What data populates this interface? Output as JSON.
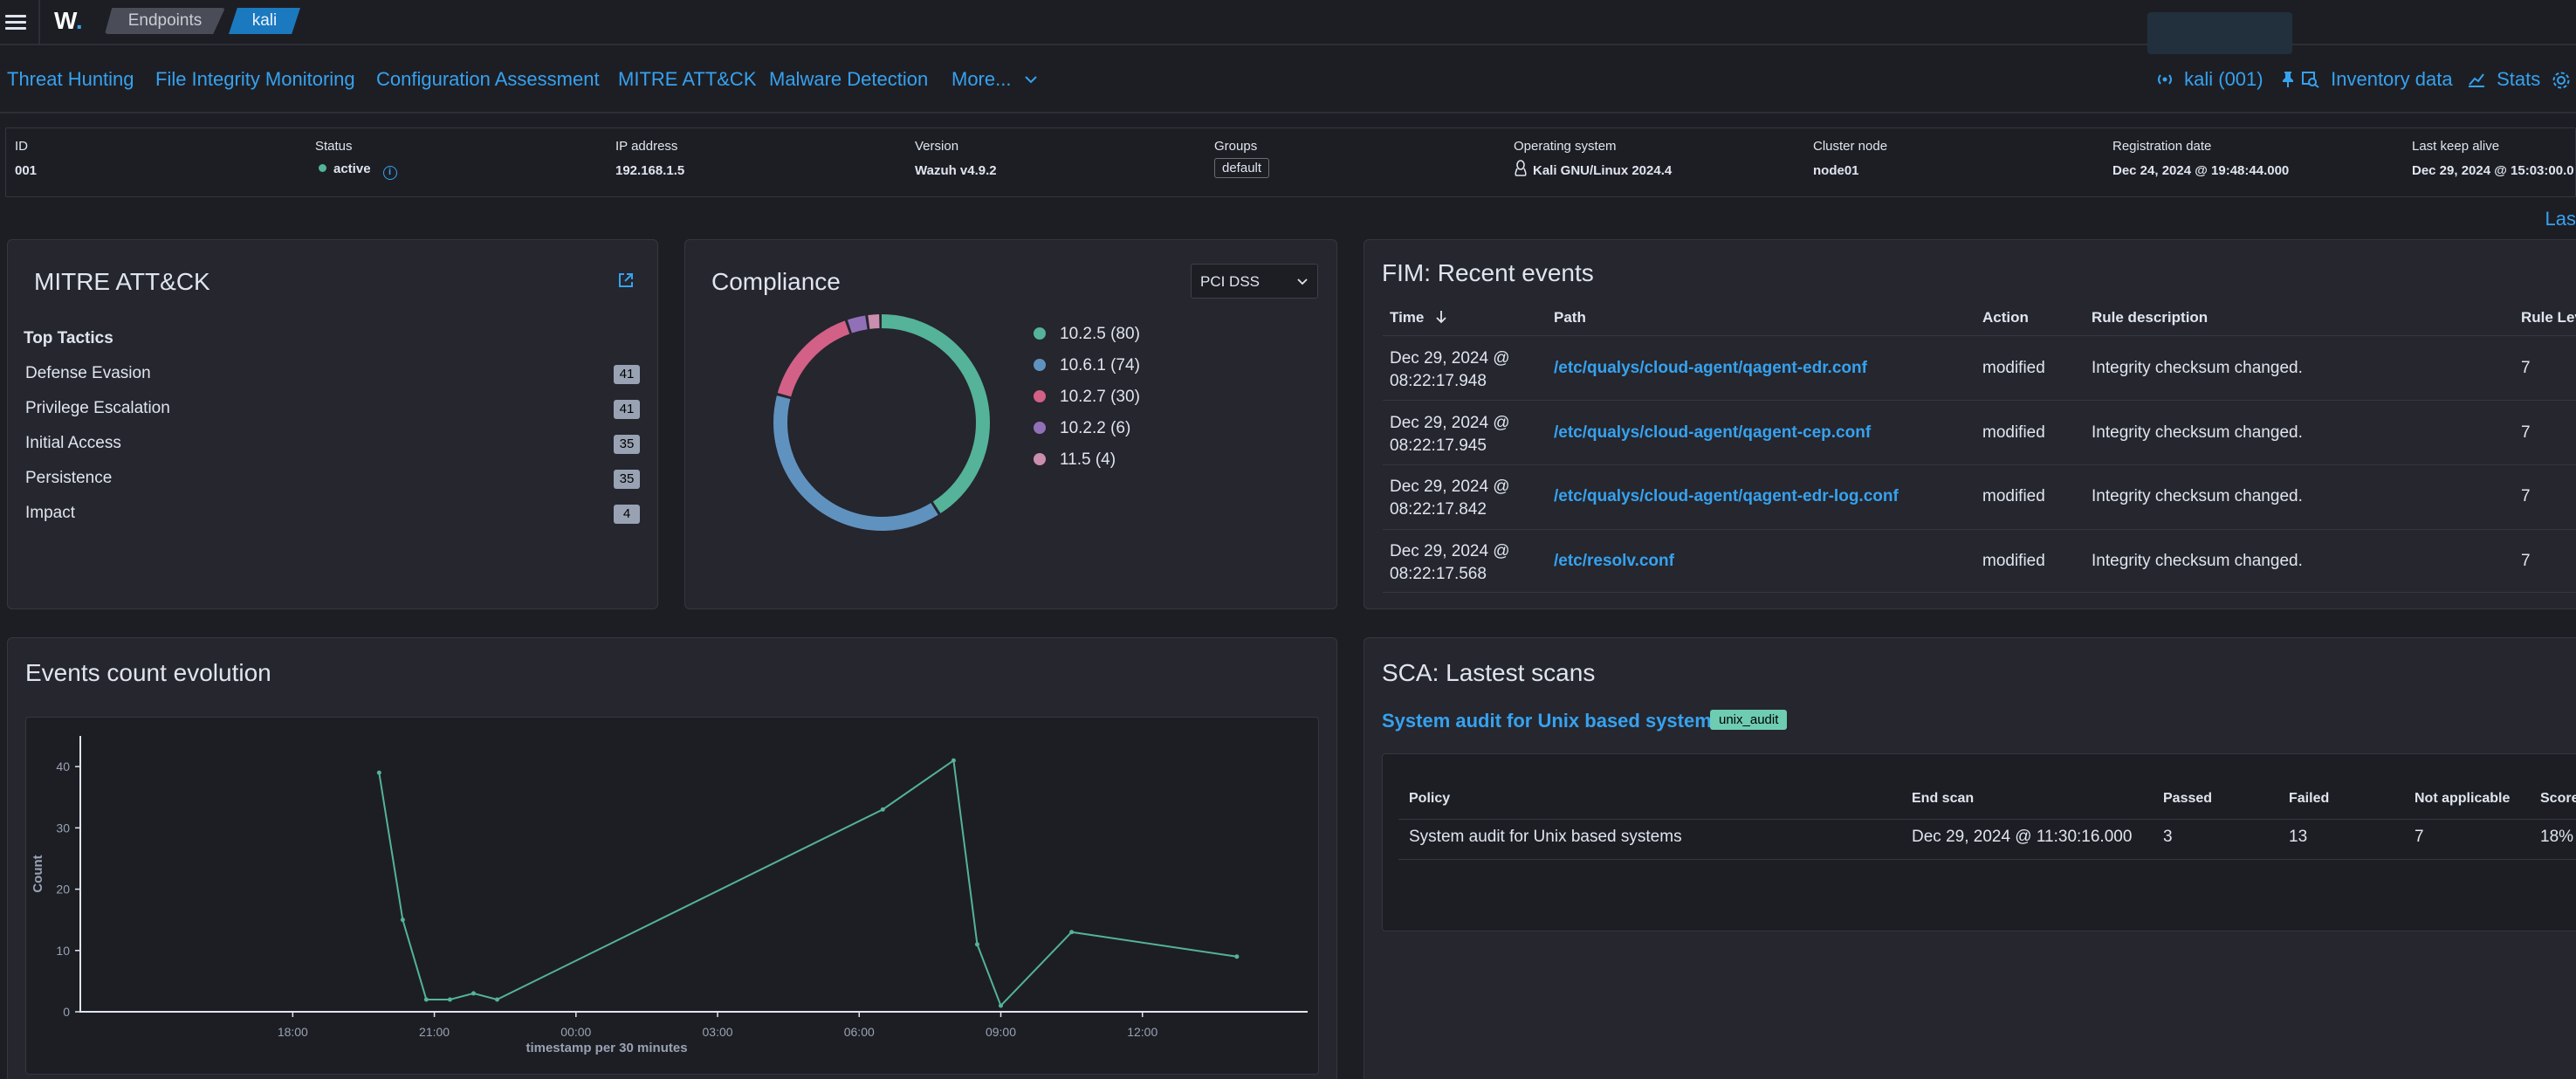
{
  "topbar": {
    "logo": "W",
    "breadcrumb": [
      "Endpoints",
      "kali"
    ]
  },
  "nav": {
    "tabs": [
      "Threat Hunting",
      "File Integrity Monitoring",
      "Configuration Assessment",
      "MITRE ATT&CK",
      "Malware Detection",
      "More..."
    ],
    "agent_label": "kali (001)",
    "inventory_label": "Inventory data",
    "stats_label": "Stats"
  },
  "agent_info": {
    "id": {
      "label": "ID",
      "value": "001"
    },
    "status": {
      "label": "Status",
      "value": "active"
    },
    "ip": {
      "label": "IP address",
      "value": "192.168.1.5"
    },
    "version": {
      "label": "Version",
      "value": "Wazuh v4.9.2"
    },
    "groups": {
      "label": "Groups",
      "value": "default"
    },
    "os": {
      "label": "Operating system",
      "value": "Kali GNU/Linux 2024.4"
    },
    "cluster": {
      "label": "Cluster node",
      "value": "node01"
    },
    "registration": {
      "label": "Registration date",
      "value": "Dec 24, 2024 @ 19:48:44.000"
    },
    "keepalive": {
      "label": "Last keep alive",
      "value": "Dec 29, 2024 @ 15:03:00.0"
    }
  },
  "last_link": "Las",
  "mitre": {
    "title": "MITRE ATT&CK",
    "subtitle": "Top Tactics",
    "tactics": [
      {
        "name": "Defense Evasion",
        "count": "41"
      },
      {
        "name": "Privilege Escalation",
        "count": "41"
      },
      {
        "name": "Initial Access",
        "count": "35"
      },
      {
        "name": "Persistence",
        "count": "35"
      },
      {
        "name": "Impact",
        "count": "4"
      }
    ]
  },
  "compliance": {
    "title": "Compliance",
    "selected": "PCI DSS",
    "legend": [
      "10.2.5 (80)",
      "10.6.1 (74)",
      "10.2.7 (30)",
      "10.2.2 (6)",
      "11.5 (4)"
    ],
    "values": [
      80,
      74,
      30,
      6,
      4
    ],
    "colors": [
      "#54b399",
      "#6092c0",
      "#d36086",
      "#9170b8",
      "#ca8eae"
    ]
  },
  "fim": {
    "title": "FIM: Recent events",
    "headers": [
      "Time",
      "Path",
      "Action",
      "Rule description",
      "Rule Lev"
    ],
    "rows": [
      {
        "time1": "Dec 29, 2024 @",
        "time2": "08:22:17.948",
        "path": "/etc/qualys/cloud-agent/qagent-edr.conf",
        "action": "modified",
        "desc": "Integrity checksum changed.",
        "level": "7"
      },
      {
        "time1": "Dec 29, 2024 @",
        "time2": "08:22:17.945",
        "path": "/etc/qualys/cloud-agent/qagent-cep.conf",
        "action": "modified",
        "desc": "Integrity checksum changed.",
        "level": "7"
      },
      {
        "time1": "Dec 29, 2024 @",
        "time2": "08:22:17.842",
        "path": "/etc/qualys/cloud-agent/qagent-edr-log.conf",
        "action": "modified",
        "desc": "Integrity checksum changed.",
        "level": "7"
      },
      {
        "time1": "Dec 29, 2024 @",
        "time2": "08:22:17.568",
        "path": "/etc/resolv.conf",
        "action": "modified",
        "desc": "Integrity checksum changed.",
        "level": "7"
      }
    ]
  },
  "events": {
    "title": "Events count evolution"
  },
  "chart_data": {
    "type": "line",
    "ylabel": "Count",
    "xlabel": "timestamp per 30 minutes",
    "x_ticks": [
      "18:00",
      "21:00",
      "00:00",
      "03:00",
      "06:00",
      "09:00",
      "12:00"
    ],
    "y_ticks": [
      0,
      10,
      20,
      30,
      40
    ],
    "ylim": [
      0,
      45
    ],
    "x_hours": [
      19.83,
      20.33,
      20.83,
      21.33,
      21.83,
      22.33,
      30.5,
      32.0,
      32.5,
      33.0,
      34.5,
      38.0
    ],
    "values": [
      39,
      15,
      2,
      2,
      3,
      2,
      33,
      41,
      11,
      1,
      13,
      9
    ],
    "color": "#54b399"
  },
  "sca": {
    "title": "SCA: Lastest scans",
    "policy_link": "System audit for Unix based systems",
    "badge": "unix_audit",
    "headers": [
      "Policy",
      "End scan",
      "Passed",
      "Failed",
      "Not applicable",
      "Score"
    ],
    "row": {
      "policy": "System audit for Unix based systems",
      "end_scan": "Dec 29, 2024 @ 11:30:16.000",
      "passed": "3",
      "failed": "13",
      "na": "7",
      "score": "18%"
    }
  }
}
